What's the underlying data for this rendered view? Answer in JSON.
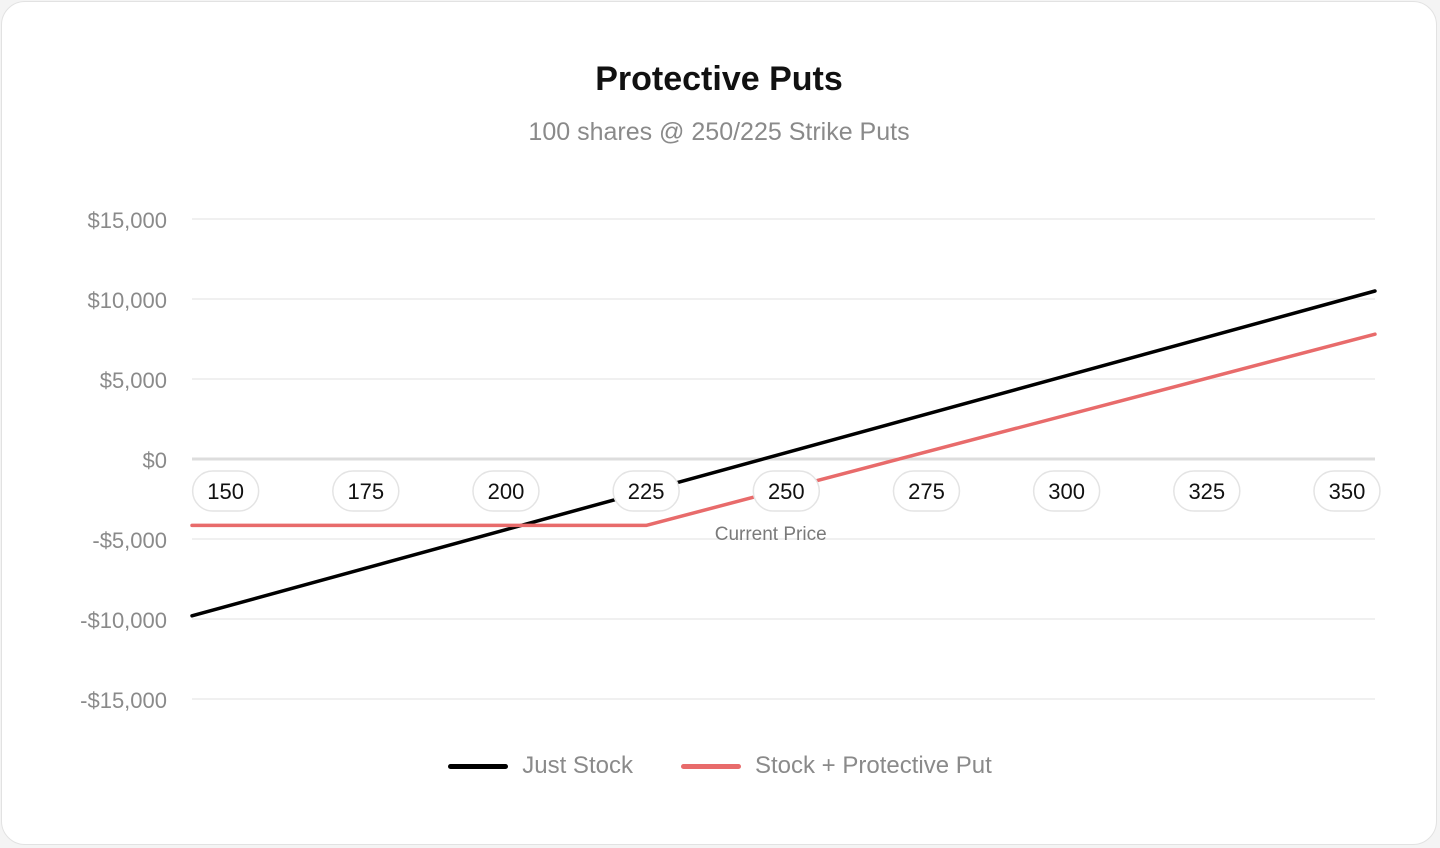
{
  "chart_data": {
    "type": "line",
    "title": "Protective Puts",
    "subtitle": "100 shares @ 250/225 Strike Puts",
    "x": [
      150,
      175,
      200,
      225,
      250,
      275,
      300,
      325,
      350
    ],
    "x_tick_labels": [
      "150",
      "175",
      "200",
      "225",
      "250",
      "275",
      "300",
      "325",
      "350"
    ],
    "xlim": [
      144,
      355
    ],
    "ylim": [
      -15000,
      15000
    ],
    "y_ticks": [
      15000,
      10000,
      5000,
      0,
      -5000,
      -10000,
      -15000
    ],
    "y_tick_labels": [
      "$15,000",
      "$10,000",
      "$5,000",
      "$0",
      "-$5,000",
      "-$10,000",
      "-$15,000"
    ],
    "grid": true,
    "legend_position": "bottom-center",
    "annotation": {
      "text": "Current Price",
      "x": 249
    },
    "series": [
      {
        "name": "Just Stock",
        "color": "#000000",
        "points": [
          [
            144,
            -9800
          ],
          [
            355,
            10500
          ]
        ]
      },
      {
        "name": "Stock + Protective Put",
        "color": "#e86b6b",
        "points": [
          [
            144,
            -4150
          ],
          [
            225,
            -4150
          ],
          [
            355,
            7800
          ]
        ]
      }
    ]
  }
}
